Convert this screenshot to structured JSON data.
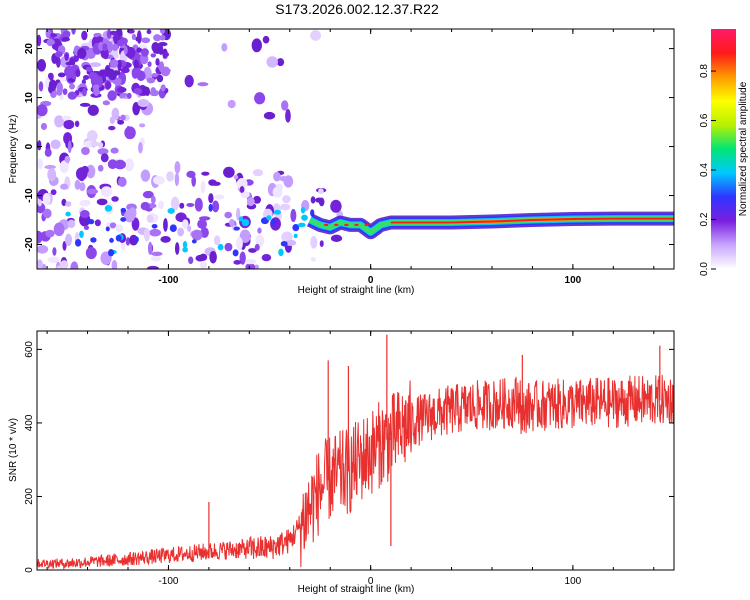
{
  "figure": {
    "title": "S173.2026.002.12.37.R22"
  },
  "chart_data": [
    {
      "type": "heatmap",
      "name": "spectrogram",
      "xlabel": "Height of straight line (km)",
      "ylabel": "Frequency (Hz)",
      "xlim": [
        -165,
        150
      ],
      "ylim": [
        -25,
        24
      ],
      "x_ticks": [
        -100,
        0,
        100
      ],
      "y_ticks": [
        -20,
        -10,
        0,
        10,
        20
      ],
      "ridge": {
        "description_values": "dominant frequency line",
        "x": [
          -30,
          -25,
          -20,
          -15,
          -10,
          -5,
          0,
          5,
          10,
          20,
          40,
          60,
          80,
          100,
          120,
          150
        ],
        "frequency": [
          -15,
          -16,
          -16.5,
          -15.5,
          -16,
          -16,
          -17.5,
          -16,
          -15.5,
          -15.5,
          -15.5,
          -15.3,
          -15,
          -14.8,
          -14.7,
          -14.7
        ]
      },
      "colorbar": {
        "label": "Normalized spectral amplitude",
        "range": [
          0,
          0.97
        ],
        "ticks": [
          "0.0",
          "0.2",
          "0.4",
          "0.6",
          "0.8"
        ],
        "colors": [
          "#ffffff",
          "#c9a6ff",
          "#7a1fe0",
          "#2f34ff",
          "#00c8ff",
          "#00e676",
          "#b8f000",
          "#ffff00",
          "#ff9900",
          "#ff1a1a",
          "#ff1a6a"
        ]
      }
    },
    {
      "type": "line",
      "name": "snr",
      "xlabel": "Height of straight line (km)",
      "ylabel": "SNR (10 * v/v)",
      "xlim": [
        -165,
        150
      ],
      "ylim": [
        0,
        650
      ],
      "x_ticks": [
        -100,
        0,
        100
      ],
      "y_ticks": [
        0,
        200,
        400,
        600
      ],
      "color": "#e8302f",
      "x": [
        -165,
        -150,
        -140,
        -130,
        -120,
        -110,
        -100,
        -90,
        -80,
        -70,
        -60,
        -50,
        -40,
        -35,
        -30,
        -25,
        -20,
        -15,
        -10,
        -5,
        0,
        5,
        10,
        15,
        20,
        30,
        40,
        50,
        60,
        70,
        74,
        75,
        76,
        80,
        90,
        100,
        110,
        120,
        130,
        140,
        150
      ],
      "values": [
        18,
        18,
        22,
        25,
        30,
        35,
        40,
        45,
        50,
        55,
        58,
        60,
        80,
        120,
        170,
        220,
        250,
        260,
        270,
        300,
        320,
        345,
        360,
        380,
        400,
        420,
        435,
        445,
        450,
        455,
        470,
        380,
        440,
        445,
        450,
        450,
        455,
        455,
        460,
        460,
        465
      ],
      "spikes": [
        {
          "x": -21,
          "value": 570
        },
        {
          "x": -11,
          "value": 555
        },
        {
          "x": 8,
          "value": 640
        },
        {
          "x": 10,
          "value": 65
        },
        {
          "x": 75,
          "value": 585
        },
        {
          "x": 143,
          "value": 610
        },
        {
          "x": -80,
          "value": 185
        }
      ]
    }
  ]
}
